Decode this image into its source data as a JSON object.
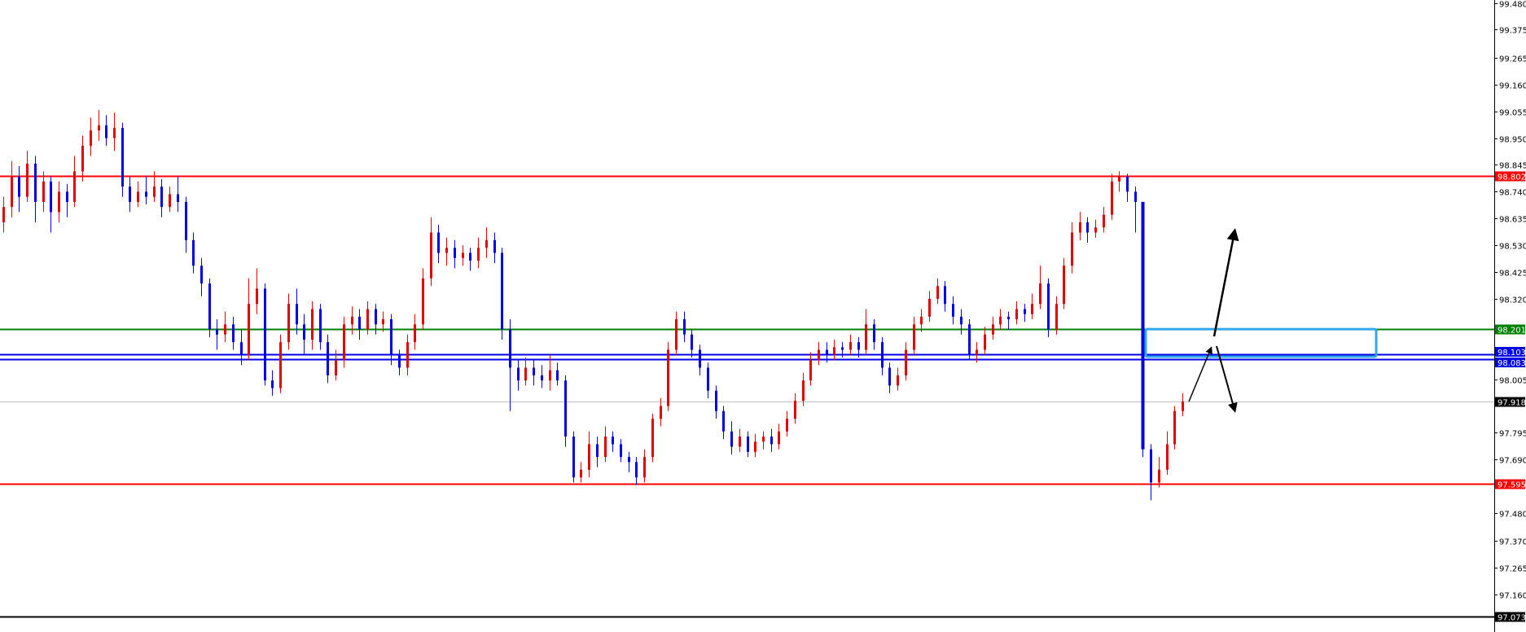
{
  "chart_data": {
    "type": "candlestick",
    "title": "",
    "xlabel": "",
    "ylabel": "",
    "ylim": [
      97.02,
      99.49
    ],
    "grid": false,
    "colors": {
      "bull": "#e00000",
      "bear": "#0000e6",
      "background": "#ffffff"
    },
    "y_ticks": [
      "99.480",
      "99.375",
      "99.265",
      "99.160",
      "99.055",
      "98.950",
      "98.845",
      "98.740",
      "98.635",
      "98.530",
      "98.425",
      "98.320",
      "98.005",
      "97.795",
      "97.690",
      "97.480",
      "97.370",
      "97.265",
      "97.160"
    ],
    "levels": [
      {
        "value": 98.802,
        "label": "98.802",
        "color": "#ff0000"
      },
      {
        "value": 98.201,
        "label": "98.201",
        "color": "#008000"
      },
      {
        "value": 98.103,
        "label": "98.103",
        "color": "#0000e6"
      },
      {
        "value": 98.083,
        "label": "98.083",
        "color": "#0000e6"
      },
      {
        "value": 97.918,
        "label": "97.918",
        "color": "#000000",
        "line_color": "#c0c0c0"
      },
      {
        "value": 97.595,
        "label": "97.595",
        "color": "#ff0000"
      },
      {
        "value": 97.073,
        "label": "97.073",
        "color": "#000000"
      }
    ],
    "zone": {
      "top": 98.201,
      "bottom": 98.093,
      "color": "#33a8e8"
    },
    "candles_ohlc": [
      [
        98.62,
        98.72,
        98.58,
        98.68
      ],
      [
        98.68,
        98.86,
        98.64,
        98.8
      ],
      [
        98.8,
        98.84,
        98.66,
        98.72
      ],
      [
        98.72,
        98.9,
        98.7,
        98.85
      ],
      [
        98.85,
        98.88,
        98.62,
        98.7
      ],
      [
        98.7,
        98.82,
        98.66,
        98.78
      ],
      [
        98.78,
        98.8,
        98.58,
        98.66
      ],
      [
        98.66,
        98.78,
        98.62,
        98.74
      ],
      [
        98.74,
        98.77,
        98.64,
        98.7
      ],
      [
        98.7,
        98.88,
        98.68,
        98.82
      ],
      [
        98.82,
        98.96,
        98.78,
        98.92
      ],
      [
        98.92,
        99.03,
        98.88,
        98.98
      ],
      [
        98.98,
        99.06,
        98.94,
        99.0
      ],
      [
        99.0,
        99.04,
        98.92,
        98.95
      ],
      [
        98.95,
        99.05,
        98.9,
        98.99
      ],
      [
        98.99,
        99.01,
        98.72,
        98.76
      ],
      [
        98.76,
        98.8,
        98.66,
        98.7
      ],
      [
        98.7,
        98.78,
        98.68,
        98.74
      ],
      [
        98.74,
        98.8,
        98.69,
        98.72
      ],
      [
        98.72,
        98.82,
        98.7,
        98.76
      ],
      [
        98.76,
        98.79,
        98.64,
        98.68
      ],
      [
        98.68,
        98.76,
        98.66,
        98.73
      ],
      [
        98.73,
        98.8,
        98.66,
        98.7
      ],
      [
        98.7,
        98.72,
        98.5,
        98.55
      ],
      [
        98.55,
        98.58,
        98.42,
        98.45
      ],
      [
        98.45,
        98.48,
        98.33,
        98.38
      ],
      [
        98.38,
        98.4,
        98.17,
        98.2
      ],
      [
        98.2,
        98.24,
        98.12,
        98.18
      ],
      [
        98.18,
        98.27,
        98.15,
        98.22
      ],
      [
        98.22,
        98.25,
        98.12,
        98.15
      ],
      [
        98.15,
        98.2,
        98.06,
        98.1
      ],
      [
        98.1,
        98.4,
        98.08,
        98.3
      ],
      [
        98.3,
        98.44,
        98.26,
        98.36
      ],
      [
        98.36,
        98.38,
        97.98,
        98.0
      ],
      [
        98.0,
        98.04,
        97.94,
        97.97
      ],
      [
        97.97,
        98.18,
        97.95,
        98.15
      ],
      [
        98.15,
        98.34,
        98.12,
        98.3
      ],
      [
        98.3,
        98.36,
        98.18,
        98.22
      ],
      [
        98.22,
        98.26,
        98.1,
        98.16
      ],
      [
        98.16,
        98.31,
        98.12,
        98.28
      ],
      [
        98.28,
        98.3,
        98.12,
        98.15
      ],
      [
        98.15,
        98.18,
        97.99,
        98.02
      ],
      [
        98.02,
        98.12,
        98.0,
        98.08
      ],
      [
        98.08,
        98.25,
        98.05,
        98.22
      ],
      [
        98.22,
        98.29,
        98.18,
        98.25
      ],
      [
        98.25,
        98.28,
        98.16,
        98.2
      ],
      [
        98.2,
        98.31,
        98.18,
        98.28
      ],
      [
        98.28,
        98.3,
        98.18,
        98.22
      ],
      [
        98.22,
        98.27,
        98.19,
        98.24
      ],
      [
        98.24,
        98.26,
        98.06,
        98.1
      ],
      [
        98.1,
        98.12,
        98.02,
        98.05
      ],
      [
        98.05,
        98.18,
        98.02,
        98.15
      ],
      [
        98.15,
        98.26,
        98.12,
        98.22
      ],
      [
        98.22,
        98.44,
        98.2,
        98.4
      ],
      [
        98.4,
        98.64,
        98.37,
        98.58
      ],
      [
        98.58,
        98.61,
        98.46,
        98.5
      ],
      [
        98.5,
        98.56,
        98.45,
        98.52
      ],
      [
        98.52,
        98.55,
        98.44,
        98.48
      ],
      [
        98.48,
        98.53,
        98.45,
        98.5
      ],
      [
        98.5,
        98.52,
        98.43,
        98.47
      ],
      [
        98.47,
        98.56,
        98.44,
        98.52
      ],
      [
        98.52,
        98.6,
        98.48,
        98.55
      ],
      [
        98.55,
        98.58,
        98.46,
        98.5
      ],
      [
        98.5,
        98.52,
        98.16,
        98.2
      ],
      [
        98.2,
        98.24,
        97.88,
        98.05
      ],
      [
        98.05,
        98.08,
        97.96,
        98.0
      ],
      [
        98.0,
        98.09,
        97.98,
        98.05
      ],
      [
        98.05,
        98.08,
        97.98,
        98.02
      ],
      [
        98.02,
        98.06,
        97.97,
        98.0
      ],
      [
        98.0,
        98.1,
        97.96,
        98.04
      ],
      [
        98.04,
        98.07,
        97.98,
        98.0
      ],
      [
        98.0,
        98.02,
        97.74,
        97.78
      ],
      [
        97.78,
        97.8,
        97.6,
        97.62
      ],
      [
        97.62,
        97.68,
        97.6,
        97.65
      ],
      [
        97.65,
        97.8,
        97.62,
        97.75
      ],
      [
        97.75,
        97.78,
        97.66,
        97.7
      ],
      [
        97.7,
        97.82,
        97.68,
        97.78
      ],
      [
        97.78,
        97.8,
        97.72,
        97.75
      ],
      [
        97.75,
        97.77,
        97.68,
        97.7
      ],
      [
        97.7,
        97.72,
        97.64,
        97.68
      ],
      [
        97.68,
        97.7,
        97.59,
        97.62
      ],
      [
        97.62,
        97.73,
        97.6,
        97.7
      ],
      [
        97.7,
        97.87,
        97.68,
        97.85
      ],
      [
        97.85,
        97.93,
        97.82,
        97.9
      ],
      [
        97.9,
        98.15,
        97.88,
        98.12
      ],
      [
        98.12,
        98.27,
        98.1,
        98.24
      ],
      [
        98.24,
        98.27,
        98.15,
        98.18
      ],
      [
        98.18,
        98.2,
        98.09,
        98.12
      ],
      [
        98.12,
        98.14,
        98.02,
        98.05
      ],
      [
        98.05,
        98.07,
        97.93,
        97.96
      ],
      [
        97.96,
        97.98,
        97.85,
        97.88
      ],
      [
        97.88,
        97.9,
        97.77,
        97.8
      ],
      [
        97.8,
        97.84,
        97.71,
        97.74
      ],
      [
        97.74,
        97.81,
        97.72,
        97.78
      ],
      [
        97.78,
        97.8,
        97.7,
        97.72
      ],
      [
        97.72,
        97.79,
        97.7,
        97.76
      ],
      [
        97.76,
        97.8,
        97.73,
        97.78
      ],
      [
        97.78,
        97.81,
        97.72,
        97.75
      ],
      [
        97.75,
        97.83,
        97.73,
        97.8
      ],
      [
        97.8,
        97.88,
        97.78,
        97.85
      ],
      [
        97.85,
        97.95,
        97.83,
        97.92
      ],
      [
        97.92,
        98.03,
        97.9,
        98.0
      ],
      [
        98.0,
        98.11,
        97.98,
        98.08
      ],
      [
        98.08,
        98.15,
        98.06,
        98.12
      ],
      [
        98.12,
        98.15,
        98.07,
        98.1
      ],
      [
        98.1,
        98.16,
        98.08,
        98.13
      ],
      [
        98.13,
        98.15,
        98.09,
        98.12
      ],
      [
        98.12,
        98.18,
        98.1,
        98.15
      ],
      [
        98.15,
        98.17,
        98.09,
        98.12
      ],
      [
        98.12,
        98.28,
        98.1,
        98.22
      ],
      [
        98.22,
        98.24,
        98.12,
        98.15
      ],
      [
        98.15,
        98.17,
        98.02,
        98.05
      ],
      [
        98.05,
        98.07,
        97.95,
        97.98
      ],
      [
        97.98,
        98.05,
        97.96,
        98.02
      ],
      [
        98.02,
        98.15,
        98.0,
        98.12
      ],
      [
        98.12,
        98.25,
        98.1,
        98.22
      ],
      [
        98.22,
        98.28,
        98.19,
        98.25
      ],
      [
        98.25,
        98.35,
        98.23,
        98.32
      ],
      [
        98.32,
        98.4,
        98.3,
        98.37
      ],
      [
        98.37,
        98.39,
        98.27,
        98.3
      ],
      [
        98.3,
        98.33,
        98.22,
        98.25
      ],
      [
        98.25,
        98.28,
        98.18,
        98.22
      ],
      [
        98.22,
        98.24,
        98.08,
        98.1
      ],
      [
        98.1,
        98.15,
        98.07,
        98.12
      ],
      [
        98.12,
        98.21,
        98.1,
        98.18
      ],
      [
        98.18,
        98.25,
        98.16,
        98.22
      ],
      [
        98.22,
        98.28,
        98.2,
        98.25
      ],
      [
        98.25,
        98.27,
        98.2,
        98.24
      ],
      [
        98.24,
        98.31,
        98.22,
        98.28
      ],
      [
        98.28,
        98.3,
        98.23,
        98.26
      ],
      [
        98.26,
        98.34,
        98.24,
        98.3
      ],
      [
        98.3,
        98.45,
        98.28,
        98.38
      ],
      [
        98.38,
        98.4,
        98.17,
        98.2
      ],
      [
        98.2,
        98.33,
        98.18,
        98.3
      ],
      [
        98.3,
        98.48,
        98.28,
        98.45
      ],
      [
        98.45,
        98.62,
        98.42,
        98.58
      ],
      [
        98.58,
        98.66,
        98.55,
        98.62
      ],
      [
        98.62,
        98.64,
        98.54,
        98.58
      ],
      [
        98.58,
        98.63,
        98.56,
        98.6
      ],
      [
        98.6,
        98.68,
        98.58,
        98.65
      ],
      [
        98.65,
        98.81,
        98.63,
        98.78
      ],
      [
        98.78,
        98.82,
        98.74,
        98.8
      ],
      [
        98.8,
        98.81,
        98.7,
        98.74
      ],
      [
        98.74,
        98.76,
        98.58,
        98.7
      ],
      [
        98.7,
        98.7,
        97.7,
        97.73
      ],
      [
        97.73,
        97.75,
        97.53,
        97.6
      ],
      [
        97.6,
        97.7,
        97.58,
        97.65
      ],
      [
        97.65,
        97.8,
        97.63,
        97.75
      ],
      [
        97.75,
        97.9,
        97.73,
        97.88
      ],
      [
        97.88,
        97.95,
        97.86,
        97.918
      ]
    ]
  }
}
